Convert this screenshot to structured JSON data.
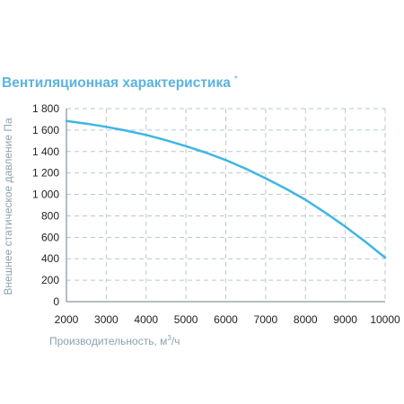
{
  "chart_data": {
    "type": "line",
    "title": "Вентиляционная характеристика",
    "title_mark": "*",
    "xlabel": "Производительность, м",
    "xlabel_sup": "3",
    "xlabel_unit": "/ч",
    "ylabel": "Внешнее статическое давление  Па",
    "xlim": [
      2000,
      10000
    ],
    "ylim": [
      0,
      1800
    ],
    "x_ticks": [
      "2000",
      "3000",
      "4000",
      "5000",
      "6000",
      "7000",
      "8000",
      "9000",
      "10000"
    ],
    "y_ticks": [
      "0",
      "200",
      "400",
      "600",
      "800",
      "1 000",
      "1 200",
      "1 400",
      "1 600",
      "1 800"
    ],
    "grid": true,
    "series": [
      {
        "color": "#3fb6e3",
        "x": [
          2000,
          2500,
          3000,
          3500,
          4000,
          4500,
          5000,
          5500,
          6000,
          6500,
          7000,
          7500,
          8000,
          8500,
          9000,
          9500,
          10000
        ],
        "y": [
          1685,
          1660,
          1630,
          1595,
          1555,
          1505,
          1450,
          1390,
          1320,
          1240,
          1150,
          1055,
          950,
          830,
          700,
          560,
          410
        ]
      }
    ]
  }
}
